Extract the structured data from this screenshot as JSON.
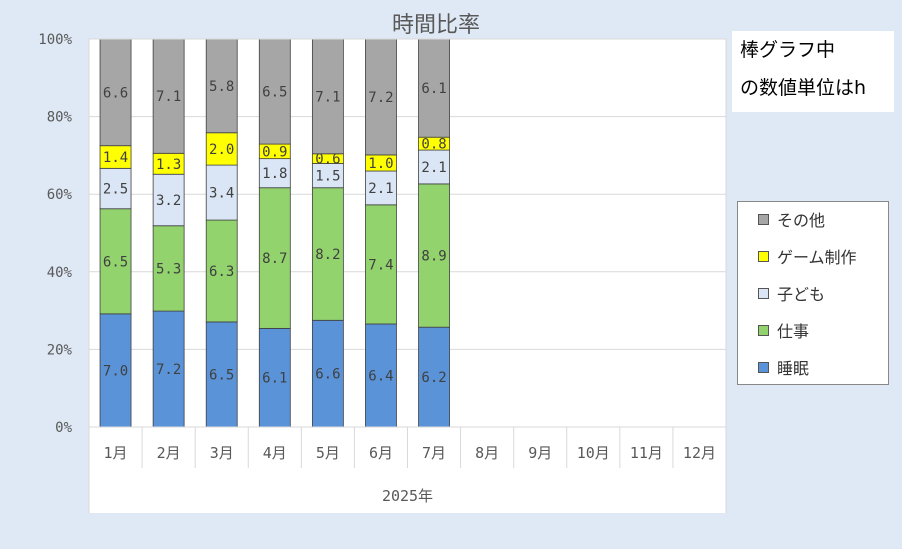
{
  "chart_data": {
    "type": "bar",
    "stacked": true,
    "normalized": true,
    "title": "時間比率",
    "note_lines": [
      "棒グラフ中",
      "の数値単位はh"
    ],
    "categories": [
      "1月",
      "2月",
      "3月",
      "4月",
      "5月",
      "6月",
      "7月",
      "8月",
      "9月",
      "10月",
      "11月",
      "12月"
    ],
    "x_group_label": "2025年",
    "y_ticks": [
      "0%",
      "20%",
      "40%",
      "60%",
      "80%",
      "100%"
    ],
    "ylim": [
      0,
      100
    ],
    "grid": true,
    "legend_position": "right",
    "series": [
      {
        "name": "睡眠",
        "color": "#5a93d8",
        "values": [
          7.0,
          7.2,
          6.5,
          6.1,
          6.6,
          6.4,
          6.2,
          null,
          null,
          null,
          null,
          null
        ]
      },
      {
        "name": "仕事",
        "color": "#92d36e",
        "values": [
          6.5,
          5.3,
          6.3,
          8.7,
          8.2,
          7.4,
          8.9,
          null,
          null,
          null,
          null,
          null
        ]
      },
      {
        "name": "子ども",
        "color": "#dae6f5",
        "values": [
          2.5,
          3.2,
          3.4,
          1.8,
          1.5,
          2.1,
          2.1,
          null,
          null,
          null,
          null,
          null
        ]
      },
      {
        "name": "ゲーム制作",
        "color": "#ffff00",
        "values": [
          1.4,
          1.3,
          2.0,
          0.9,
          0.6,
          1.0,
          0.8,
          null,
          null,
          null,
          null,
          null
        ]
      },
      {
        "name": "その他",
        "color": "#a6a6a6",
        "values": [
          6.6,
          7.1,
          5.8,
          6.5,
          7.1,
          7.2,
          6.1,
          null,
          null,
          null,
          null,
          null
        ]
      }
    ]
  }
}
